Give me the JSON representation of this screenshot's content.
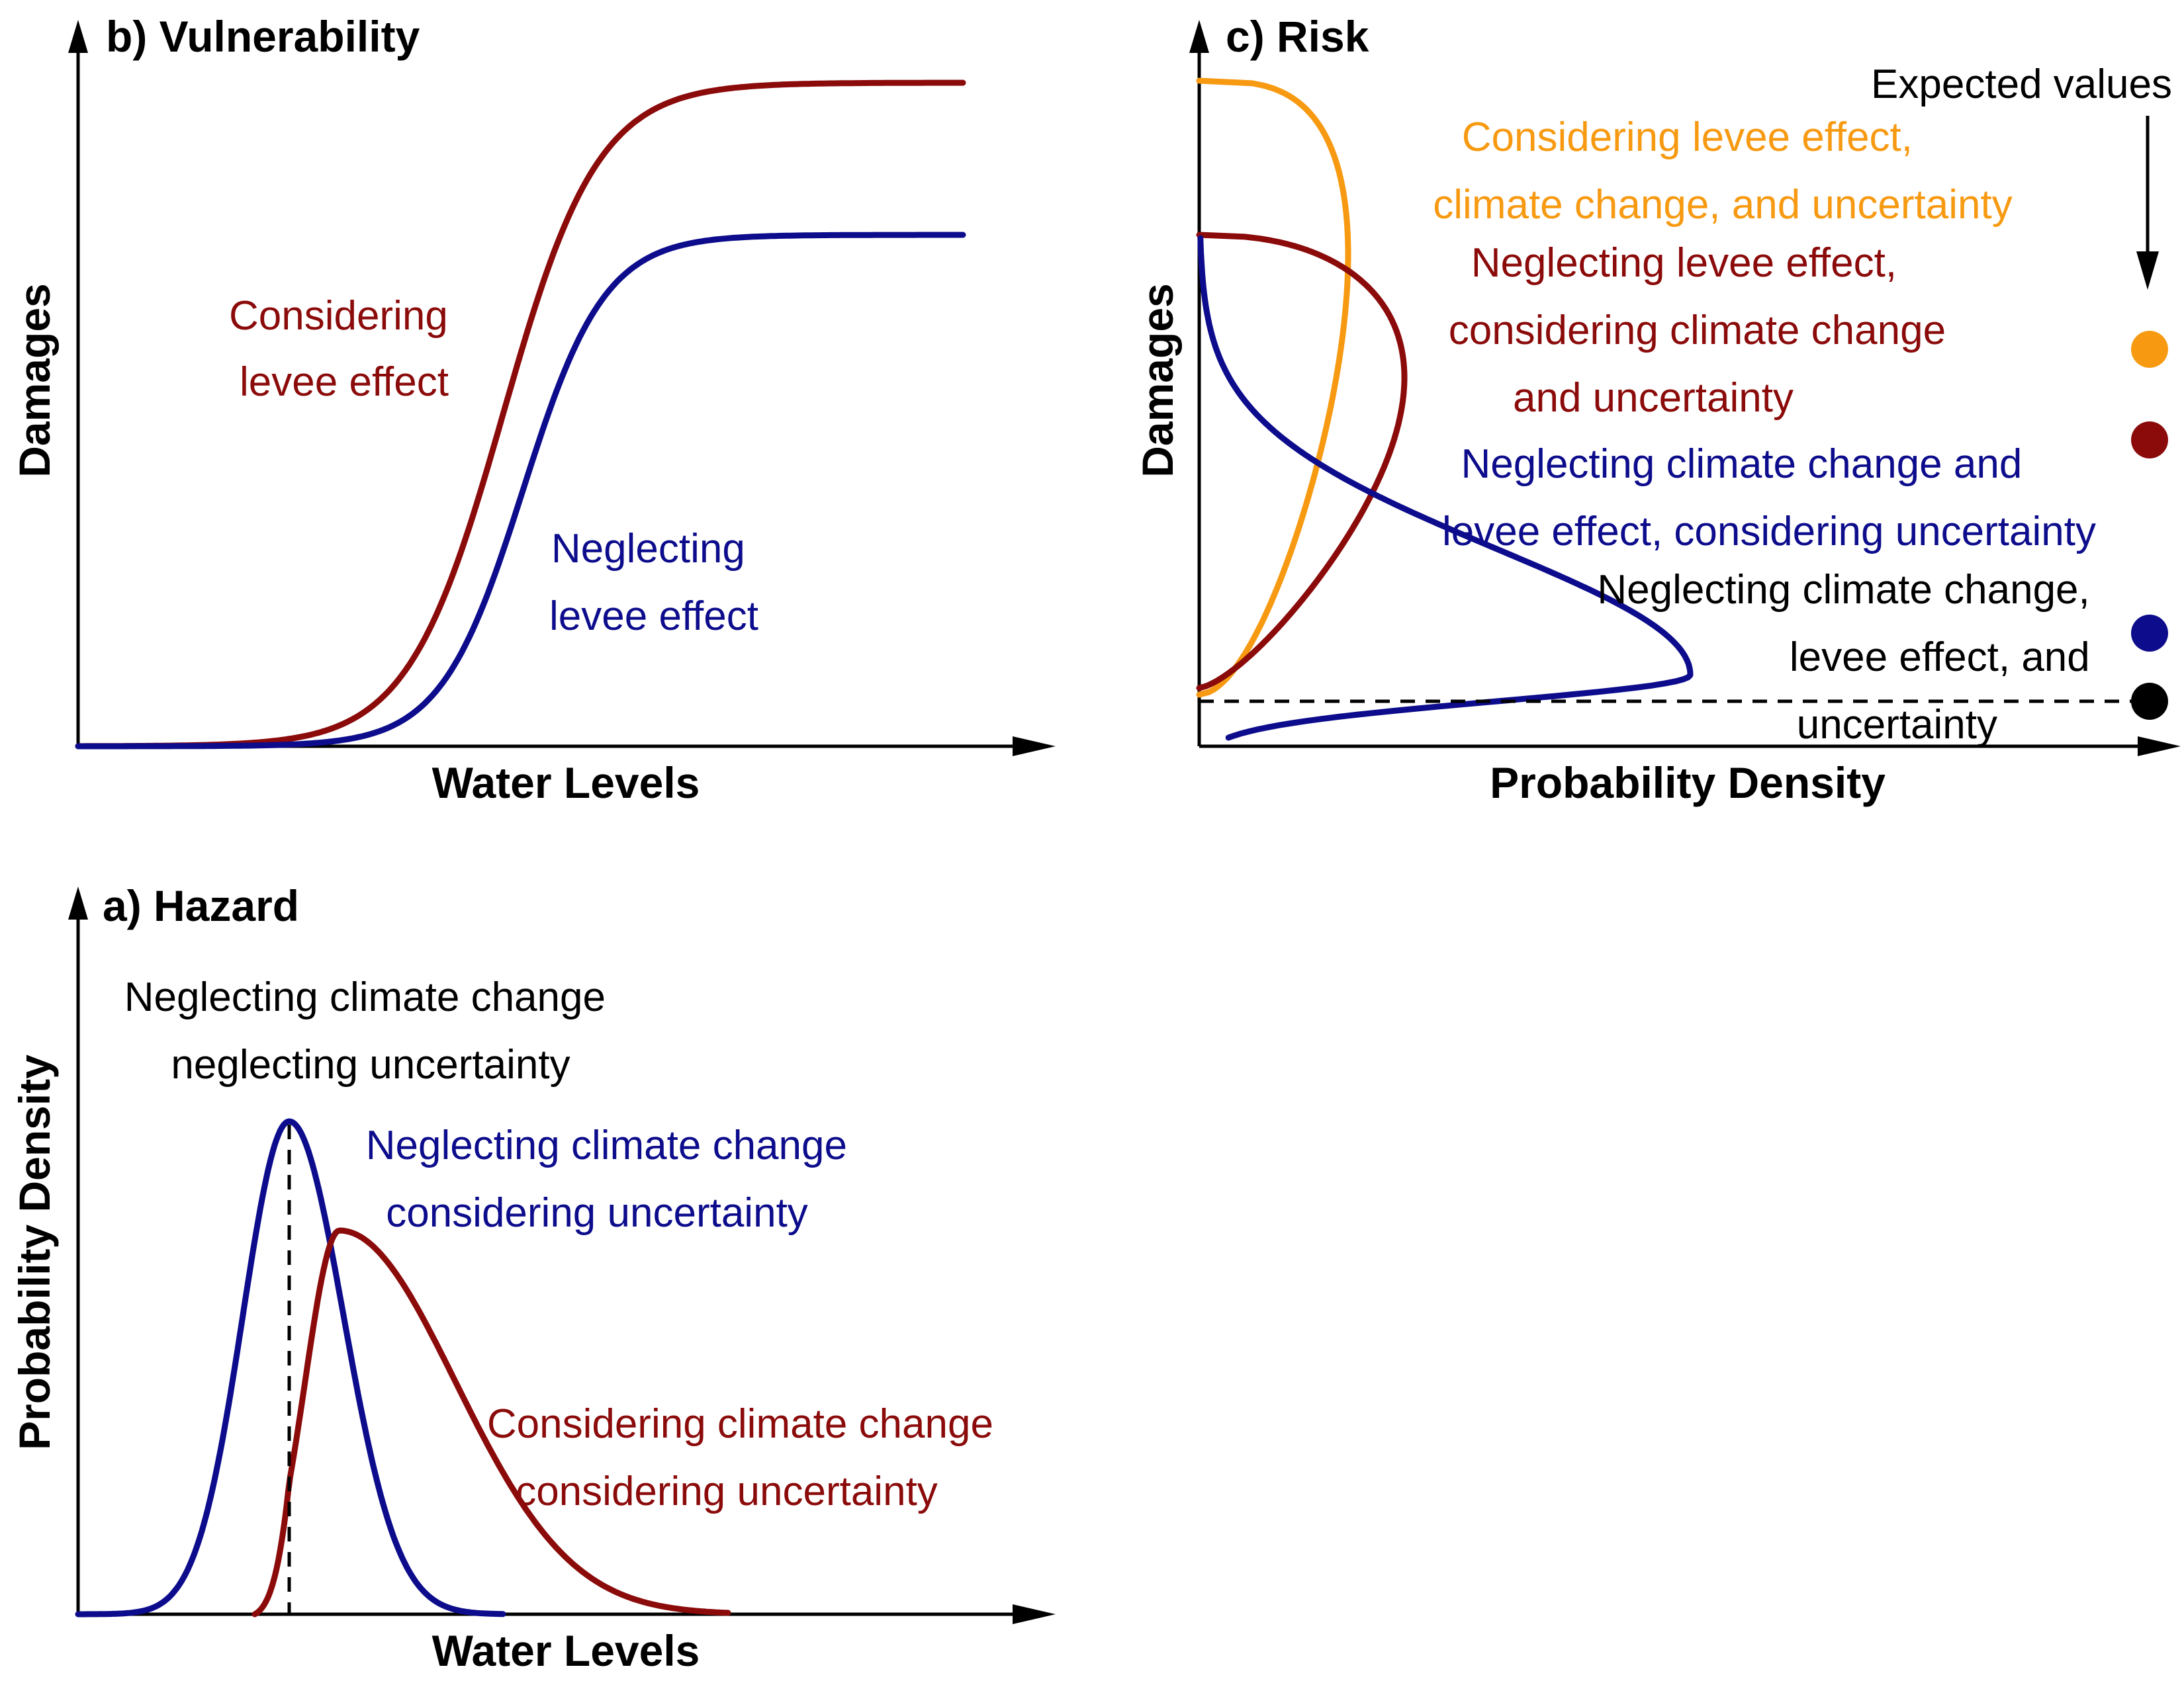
{
  "colors": {
    "blue": "#0c0c8c",
    "red": "#8b0a0a",
    "orange": "#f79a12",
    "black": "#000000"
  },
  "panel_b": {
    "title": "b) Vulnerability",
    "xlabel": "Water Levels",
    "ylabel": "Damages",
    "label_red": [
      "Considering",
      "levee effect"
    ],
    "label_blue": [
      "Neglecting",
      "levee effect"
    ]
  },
  "panel_c": {
    "title": "c) Risk",
    "xlabel": "Probability Density",
    "ylabel": "Damages",
    "expected_title": "Expected values",
    "label_orange": [
      "Considering levee effect,",
      "climate change, and uncertainty"
    ],
    "label_red": [
      "Neglecting levee effect,",
      "considering climate change",
      "and uncertainty"
    ],
    "label_blue": [
      "Neglecting climate change and",
      "levee effect, considering uncertainty"
    ],
    "label_black": [
      "Neglecting climate change,",
      "levee effect, and",
      "uncertainty"
    ]
  },
  "panel_a": {
    "title": "a) Hazard",
    "xlabel": "Water Levels",
    "ylabel": "Probability Density",
    "label_black": [
      "Neglecting climate change",
      "neglecting uncertainty"
    ],
    "label_blue": [
      "Neglecting climate change",
      "considering uncertainty"
    ],
    "label_red": [
      "Considering climate change",
      "considering uncertainty"
    ]
  }
}
